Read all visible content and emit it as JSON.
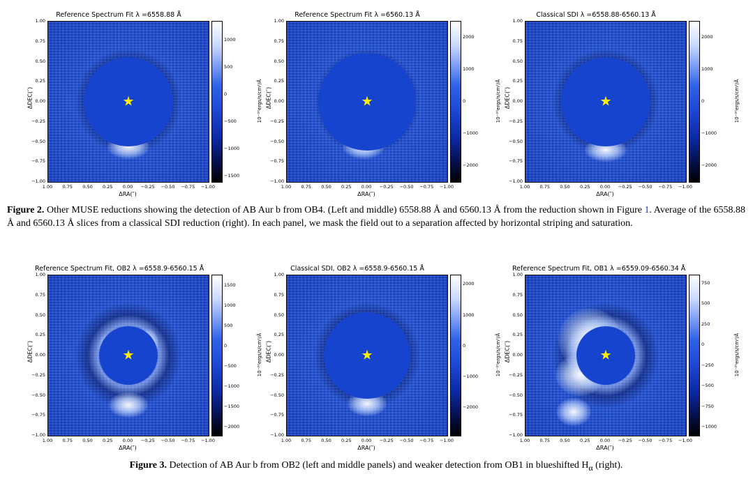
{
  "panels": [
    {
      "title": "Reference Spectrum Fit λ =6558.88 Å",
      "xlabel": "ΔRA(″)",
      "ylabel": "ΔDEC(″)",
      "xticks": [
        "1.00",
        "0.75",
        "0.50",
        "0.25",
        "0.00",
        "−0.25",
        "−0.50",
        "−0.75",
        "−1.00"
      ],
      "yticks": [
        "1.00",
        "0.75",
        "0.50",
        "0.25",
        "0.00",
        "−0.25",
        "−0.50",
        "−0.75",
        "−1.00"
      ],
      "cbar_label": "10⁻²⁰ergs/s/cm²/Å",
      "cbar_ticks": [
        "1000",
        "500",
        "0",
        "−500",
        "−1000",
        "−1500"
      ],
      "cbar_range": [
        -1600,
        1350
      ]
    },
    {
      "title": "Reference Spectrum Fit λ =6560.13 Å",
      "xlabel": "ΔRA(″)",
      "ylabel": "ΔDEC(″)",
      "xticks": [
        "1.00",
        "0.75",
        "0.50",
        "0.25",
        "0.00",
        "−0.25",
        "−0.50",
        "−0.75",
        "−1.00"
      ],
      "yticks": [
        "1.00",
        "0.75",
        "0.50",
        "0.25",
        "0.00",
        "−0.25",
        "−0.50",
        "−0.75",
        "−1.00"
      ],
      "cbar_label": "10⁻²⁰ergs/s/cm²/Å",
      "cbar_ticks": [
        "2000",
        "1000",
        "0",
        "−1000",
        "−2000"
      ],
      "cbar_range": [
        -2500,
        2500
      ]
    },
    {
      "title": "Classical SDI λ =6558.88-6560.13 Å",
      "xlabel": "ΔRA(″)",
      "ylabel": "ΔDEC(″)",
      "xticks": [
        "1.00",
        "0.75",
        "0.50",
        "0.25",
        "0.00",
        "−0.25",
        "−0.50",
        "−0.75",
        "−1.00"
      ],
      "yticks": [
        "1.00",
        "0.75",
        "0.50",
        "0.25",
        "0.00",
        "−0.25",
        "−0.50",
        "−0.75",
        "−1.00"
      ],
      "cbar_label": "10⁻²⁰ergs/s/cm²/Å",
      "cbar_ticks": [
        "2000",
        "1000",
        "0",
        "−1000",
        "−2000"
      ],
      "cbar_range": [
        -2500,
        2500
      ]
    },
    {
      "title": "Reference Spectrum Fit, OB2 λ =6558.9-6560.15 Å",
      "xlabel": "ΔRA(″)",
      "ylabel": "ΔDEC(″)",
      "xticks": [
        "1.00",
        "0.75",
        "0.50",
        "0.25",
        "0.00",
        "−0.25",
        "−0.50",
        "−0.75",
        "−1.00"
      ],
      "yticks": [
        "1.00",
        "0.75",
        "0.50",
        "0.25",
        "0.00",
        "−0.25",
        "−0.50",
        "−0.75",
        "−1.00"
      ],
      "cbar_label": "10⁻²⁰ergs/s/cm²/Å",
      "cbar_ticks": [
        "1500",
        "1000",
        "500",
        "0",
        "−500",
        "−1000",
        "−1500",
        "−2000"
      ],
      "cbar_range": [
        -2200,
        1750
      ]
    },
    {
      "title": "Classical SDI, OB2 λ =6558.9-6560.15 Å",
      "xlabel": "ΔRA(″)",
      "ylabel": "ΔDEC(″)",
      "xticks": [
        "1.00",
        "0.75",
        "0.50",
        "0.25",
        "0.00",
        "−0.25",
        "−0.50",
        "−0.75",
        "−1.00"
      ],
      "yticks": [
        "1.00",
        "0.75",
        "0.50",
        "0.25",
        "0.00",
        "−0.25",
        "−0.50",
        "−0.75",
        "−1.00"
      ],
      "cbar_label": "10⁻²⁰ergs/s/cm²/Å",
      "cbar_ticks": [
        "2000",
        "1000",
        "0",
        "−1000",
        "−2000"
      ],
      "cbar_range": [
        -2900,
        2300
      ]
    },
    {
      "title": "Reference Spectrum Fit, OB1 λ =6559.09-6560.34 Å",
      "xlabel": "ΔRA(″)",
      "ylabel": "ΔDEC(″)",
      "xticks": [
        "1.00",
        "0.75",
        "0.50",
        "0.25",
        "0.00",
        "−0.25",
        "−0.50",
        "−0.75",
        "−1.00"
      ],
      "yticks": [
        "1.00",
        "0.75",
        "0.50",
        "0.25",
        "0.00",
        "−0.25",
        "−0.50",
        "−0.75",
        "−1.00"
      ],
      "cbar_label": "10⁻²⁰ergs/s/cm²/Å",
      "cbar_ticks": [
        "750",
        "500",
        "250",
        "0",
        "−250",
        "−500",
        "−750",
        "−1000"
      ],
      "cbar_range": [
        -1100,
        850
      ]
    }
  ],
  "captions": {
    "fig2_label": "Figure 2.",
    "fig2_text_a": " Other MUSE reductions showing the detection of AB Aur b from OB4. (Left and middle) 6558.88 Å and 6560.13 Å from the reduction shown in Figure ",
    "fig2_link": "1",
    "fig2_text_b": ". Average of the 6558.88 Å and 6560.13 Å slices from a classical SDI reduction (right). In each panel, we mask the field out to a separation affected by horizontal striping and saturation.",
    "fig3_label": "Figure 3.",
    "fig3_text": " Detection of AB Aur b from OB2 (left and middle panels) and weaker detection from OB1 in blueshifted H",
    "fig3_sub": "α",
    "fig3_end": " (right)."
  }
}
